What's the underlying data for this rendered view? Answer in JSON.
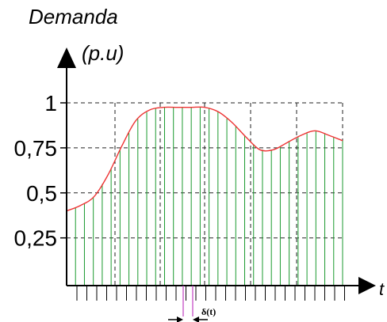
{
  "chart_data": {
    "type": "line",
    "title": "",
    "ylabel_line1": "Demanda",
    "ylabel_line2": "(p.u)",
    "xlabel": "t",
    "annotation": "δ(t)",
    "ytick_labels": [
      "1",
      "0,75",
      "0,5",
      "0,25"
    ],
    "ytick_values": [
      1,
      0.75,
      0.5,
      0.25
    ],
    "ylim": [
      -0.015,
      1.0
    ],
    "xlim": [
      0,
      100
    ],
    "grid": true,
    "x": [
      0,
      5,
      10,
      15,
      20,
      25,
      30,
      35,
      40,
      45,
      50,
      55,
      60,
      65,
      70,
      75,
      80,
      85,
      90,
      95,
      100
    ],
    "y": [
      0.4,
      0.43,
      0.48,
      0.6,
      0.76,
      0.9,
      0.96,
      0.975,
      0.975,
      0.975,
      0.975,
      0.95,
      0.89,
      0.81,
      0.74,
      0.74,
      0.78,
      0.82,
      0.845,
      0.82,
      0.79
    ],
    "colors": {
      "curve": "#ee3333",
      "sample_lines": "#1b9a2f",
      "grid": "#222222",
      "axes": "#000000",
      "interval_marker": "#c040c0"
    }
  }
}
